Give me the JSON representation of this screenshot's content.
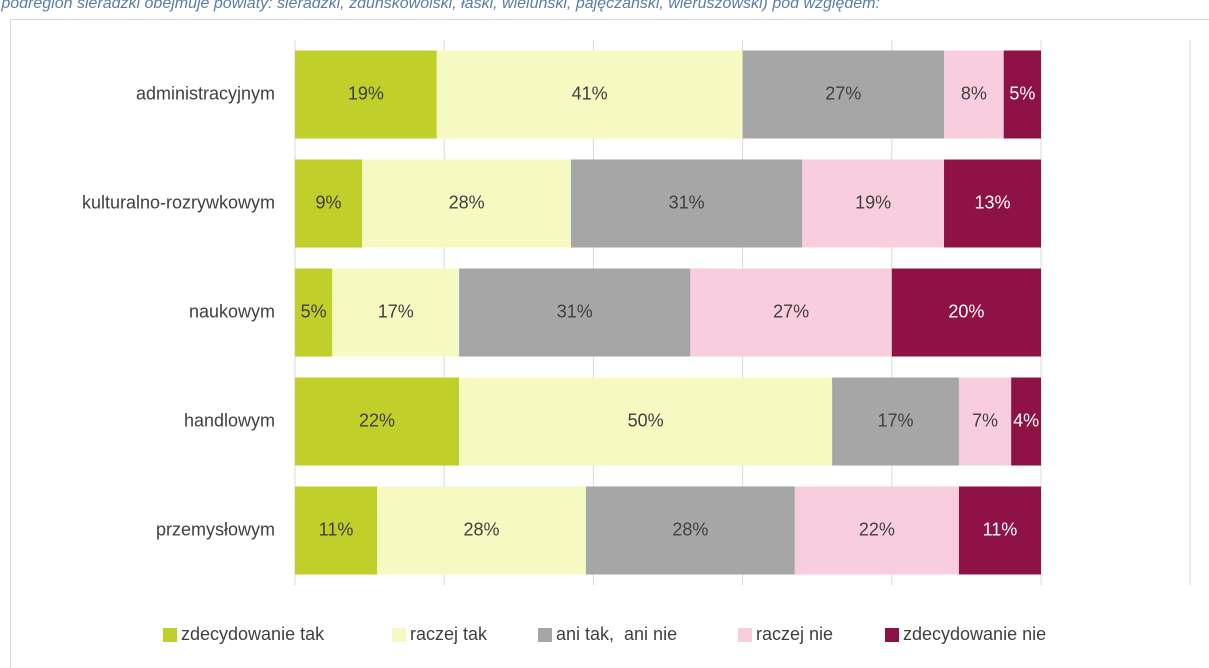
{
  "chart_data": {
    "type": "stacked-barh",
    "subtitle": "(podregion sieradzki obejmuje powiaty: sieradzki, zduńskowolski, łaski, wieluński, pajęczański, wieruszowski) pod względem:",
    "categories": [
      "administracyjnym",
      "kulturalno-rozrywkowym",
      "naukowym",
      "handlowym",
      "przemysłowym"
    ],
    "series": [
      {
        "name": "zdecydowanie tak",
        "color": "#c0cf2a",
        "values": [
          19,
          9,
          5,
          22,
          11
        ],
        "value_labels": [
          "19%",
          "9%",
          "5%",
          "22%",
          "11%"
        ]
      },
      {
        "name": "raczej tak",
        "color": "#f7f9c3",
        "values": [
          41,
          28,
          17,
          50,
          28
        ],
        "value_labels": [
          "41%",
          "28%",
          "17%",
          "50%",
          "28%"
        ]
      },
      {
        "name": "ani tak,  ani nie",
        "color": "#a6a6a6",
        "values": [
          27,
          31,
          31,
          17,
          28
        ],
        "value_labels": [
          "27%",
          "31%",
          "31%",
          "17%",
          "28%"
        ]
      },
      {
        "name": "raczej nie",
        "color": "#f8cede",
        "values": [
          8,
          19,
          27,
          7,
          22
        ],
        "value_labels": [
          "8%",
          "19%",
          "27%",
          "7%",
          "22%"
        ]
      },
      {
        "name": "zdecydowanie nie",
        "color": "#8e1245",
        "values": [
          5,
          13,
          20,
          4,
          11
        ],
        "value_labels": [
          "5%",
          "13%",
          "20%",
          "4%",
          "11%"
        ]
      }
    ],
    "xlim": [
      0,
      100
    ],
    "xticks": [
      0,
      20,
      40,
      60,
      80,
      100
    ],
    "grid": true,
    "legend": "bottom"
  }
}
